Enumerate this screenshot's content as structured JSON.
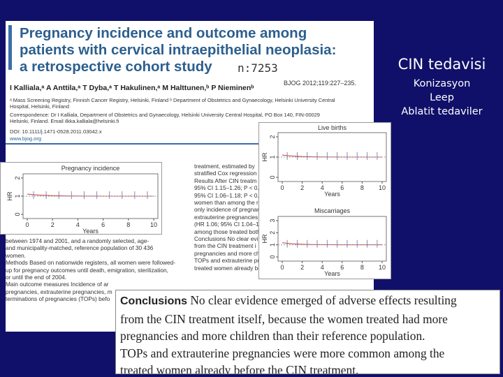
{
  "slide": {
    "heading": "CIN tedavisi",
    "items": [
      "Konizasyon",
      "Leep",
      "Ablatit tedaviler"
    ]
  },
  "paper": {
    "title_lines": [
      "Pregnancy incidence and outcome among",
      "patients with cervical intraepithelial neoplasia:",
      "a retrospective cohort study"
    ],
    "sample_size": "n:7253",
    "citation": "BJOG 2012;119:227–235.",
    "authors": "I Kalliala,ᵃ A Anttila,ᵃ T Dyba,ᵃ T Hakulinen,ᵃ M Halttunen,ᵇ P Nieminenᵇ",
    "affiliations": [
      "ᵃ Mass Screening Registry, Finnish Cancer Registry, Helsinki, Finland ᵇ Department of Obstetrics and Gynaecology, Helsinki University Central",
      "Hospital, Helsinki, Finland",
      "Correspondence: Dr I Kalliala, Department of Obstetrics and Gynaecology, Helsinki University Central Hospital, PO Box 140, FIN-00029",
      "Helsinki, Finland. Email ilkka.kalliala@helsinki.fi"
    ],
    "doi": "DOI: 10.1111/j.1471-0528.2011.03042.x",
    "website": "www.bjog.org",
    "left_column": [
      "between 1974 and 2001, and a randomly selected, age-",
      "and municipality-matched, reference population of 30 436",
      "women.",
      "Methods Based on nationwide registers, all women were followed-",
      "up for pregnancy outcomes until death, emigration, sterilization,",
      "or until the end of 2004.",
      "Main outcome measures Incidence of ar",
      "pregnancies, extrauterine pregnancies, m",
      "terminations of pregnancies (TOPs) befo"
    ],
    "right_column": [
      "treatment, estimated by",
      "stratified Cox regression",
      "Results After CIN treatm",
      "95% CI 1.15–1.26; P < 0.0",
      "95% CI 1.06–1.18; P < 0.0",
      "women than among the r",
      "only incidence of pregnan",
      "extrauterine pregnancies",
      "(HR 1.06; 95% CI 1.04–1",
      "among those treated both",
      "Conclusions No clear evi",
      "from the CIN treatment i",
      "pregnancies and more chi",
      "TOPs and extrauterine pre",
      "treated women already before the CIN treatment."
    ]
  },
  "figures": [
    {
      "title": "Pregnancy incidence",
      "y_label": "HR",
      "y_ticks": [
        "0",
        "1",
        "2"
      ],
      "x_ticks": [
        "0",
        "2",
        "4",
        "6",
        "8",
        "10"
      ],
      "x_label": "Years"
    },
    {
      "title": "Live births",
      "y_label": "HR",
      "y_ticks": [
        "0",
        "1",
        "2"
      ],
      "x_ticks": [
        "0",
        "2",
        "4",
        "6",
        "8",
        "10"
      ],
      "x_label": "Years"
    },
    {
      "title": "Miscarriages",
      "y_label": "HR",
      "y_ticks": [
        "0",
        "1",
        "2",
        "3"
      ],
      "x_ticks": [
        "0",
        "2",
        "4",
        "6",
        "8",
        "10"
      ],
      "x_label": "Years"
    }
  ],
  "conclusion_box": {
    "label": "Conclusions",
    "lines": [
      "No clear evidence emerged of adverse effects resulting",
      "from the CIN treatment itself, because the women treated had more",
      "pregnancies and more children than their reference population.",
      "TOPs and extrauterine pregnancies were more common among the",
      "treated women already before the CIN treatment."
    ]
  }
}
